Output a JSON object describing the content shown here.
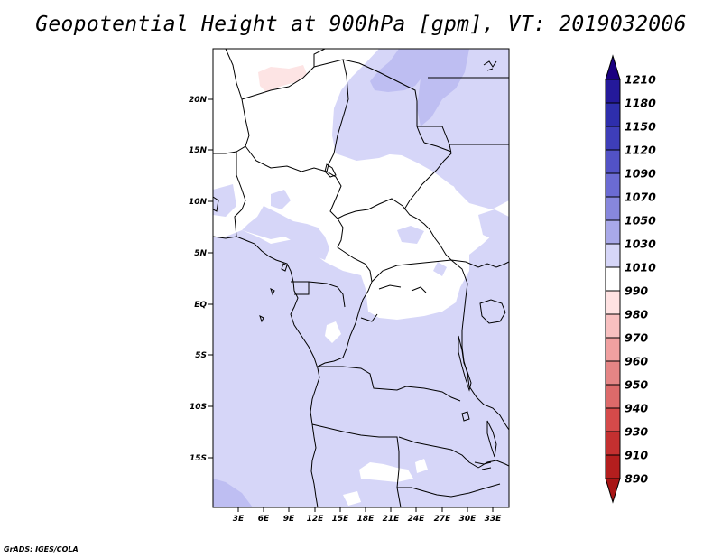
{
  "title": "Geopotential Height at 900hPa [gpm], VT: 2019032006",
  "credit": "GrADS: IGES/COLA",
  "map": {
    "lat_labels": [
      "20N",
      "15N",
      "10N",
      "5N",
      "EQ",
      "5S",
      "10S",
      "15S"
    ],
    "lon_labels": [
      "3E",
      "6E",
      "9E",
      "12E",
      "15E",
      "18E",
      "21E",
      "24E",
      "27E",
      "30E",
      "33E"
    ]
  },
  "colorbar": {
    "levels": [
      {
        "label": "1210",
        "color": "#1a0080"
      },
      {
        "label": "1180",
        "color": "#24199a"
      },
      {
        "label": "1150",
        "color": "#2e2eac"
      },
      {
        "label": "1120",
        "color": "#3e3eb9"
      },
      {
        "label": "1090",
        "color": "#5252c6"
      },
      {
        "label": "1070",
        "color": "#6b6bd3"
      },
      {
        "label": "1050",
        "color": "#8787dd"
      },
      {
        "label": "1030",
        "color": "#a9a9e9"
      },
      {
        "label": "1010",
        "color": "#d6d6f8"
      },
      {
        "label": "990",
        "color": "#ffffff"
      },
      {
        "label": "980",
        "color": "#ffe2e2"
      },
      {
        "label": "970",
        "color": "#f8c0c0"
      },
      {
        "label": "960",
        "color": "#f0a0a0"
      },
      {
        "label": "950",
        "color": "#e58585"
      },
      {
        "label": "940",
        "color": "#dd6a6a"
      },
      {
        "label": "930",
        "color": "#d54a4a"
      },
      {
        "label": "910",
        "color": "#c43030"
      },
      {
        "label": "890",
        "color": "#b41e1e"
      }
    ],
    "tip_top_color": "#1a0080",
    "tip_bottom_color": "#a81515"
  },
  "colors": {
    "light_blue": "#d6d6f8",
    "mid_blue": "#bebef2",
    "dark_blue": "#ababed",
    "light_red": "#fde4e4"
  }
}
